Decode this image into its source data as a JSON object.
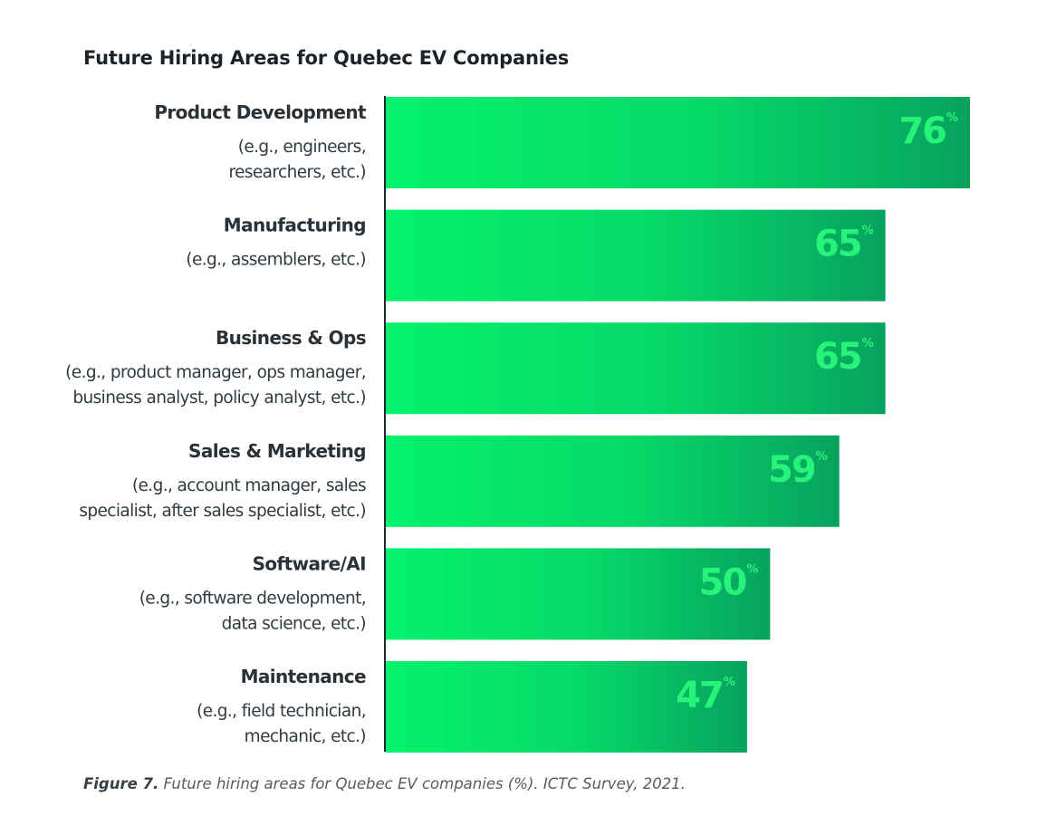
{
  "chart_data": {
    "type": "bar",
    "orientation": "horizontal",
    "title": "Future Hiring Areas for Quebec EV Companies",
    "categories": [
      {
        "name": "Product Development",
        "desc": [
          "(e.g., engineers,",
          "researchers, etc.)"
        ]
      },
      {
        "name": "Manufacturing",
        "desc": [
          "(e.g., assemblers, etc.)"
        ]
      },
      {
        "name": "Business & Ops",
        "desc": [
          "(e.g., product manager, ops manager,",
          "business analyst, policy analyst, etc.)"
        ]
      },
      {
        "name": "Sales & Marketing",
        "desc": [
          "(e.g., account manager, sales",
          "specialist, after sales specialist, etc.)"
        ]
      },
      {
        "name": "Software/AI",
        "desc": [
          "(e.g., software development,",
          "data science, etc.)"
        ]
      },
      {
        "name": "Maintenance",
        "desc": [
          "(e.g., field technician,",
          "mechanic, etc.)"
        ]
      }
    ],
    "values": [
      76,
      65,
      65,
      59,
      50,
      47
    ],
    "unit": "%",
    "xlim": [
      0,
      100
    ],
    "grid": false,
    "colors": {
      "bar_start": "#05f26c",
      "bar_end": "#07a25e",
      "label": "#27f27a",
      "axis": "#1f2a30"
    }
  },
  "caption": {
    "label": "Figure 7.",
    "text": " Future hiring areas for Quebec EV companies (%). ICTC Survey, 2021."
  }
}
